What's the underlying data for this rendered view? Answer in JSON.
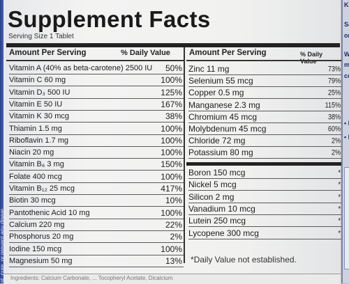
{
  "title": "Supplement Facts",
  "serving_size": "Serving Size 1 Tablet",
  "headers": {
    "left_amount": "Amount Per Serving",
    "left_dv": "% Daily Value",
    "right_amount": "Amount Per Serving",
    "right_dv": "% Daily Value"
  },
  "left_rows": [
    {
      "name": "Vitamin A (40% as beta-carotene) 2500 IU",
      "dv": "50%"
    },
    {
      "name": "Vitamin C 60 mg",
      "dv": "100%"
    },
    {
      "name": "Vitamin D₃ 500 IU",
      "dv": "125%"
    },
    {
      "name": "Vitamin E 50 IU",
      "dv": "167%"
    },
    {
      "name": "Vitamin K 30 mcg",
      "dv": "38%"
    },
    {
      "name": "Thiamin 1.5 mg",
      "dv": "100%"
    },
    {
      "name": "Riboflavin 1.7 mg",
      "dv": "100%"
    },
    {
      "name": "Niacin 20 mg",
      "dv": "100%"
    },
    {
      "name": "Vitamin B₆ 3 mg",
      "dv": "150%"
    },
    {
      "name": "Folate 400 mcg",
      "dv": "100%"
    },
    {
      "name": "Vitamin B₁₂ 25 mcg",
      "dv": "417%"
    },
    {
      "name": "Biotin 30 mcg",
      "dv": "10%"
    },
    {
      "name": "Pantothenic Acid 10 mg",
      "dv": "100%"
    },
    {
      "name": "Calcium 220 mg",
      "dv": "22%"
    },
    {
      "name": "Phosphorus 20 mg",
      "dv": "2%"
    },
    {
      "name": "Iodine 150 mcg",
      "dv": "100%"
    },
    {
      "name": "Magnesium 50 mg",
      "dv": "13%"
    }
  ],
  "right_rows": [
    {
      "name": "Zinc 11 mg",
      "dv": "73%"
    },
    {
      "name": "Selenium 55 mcg",
      "dv": "79%"
    },
    {
      "name": "Copper 0.5 mg",
      "dv": "25%"
    },
    {
      "name": "Manganese 2.3 mg",
      "dv": "115%"
    },
    {
      "name": "Chromium 45 mcg",
      "dv": "38%"
    },
    {
      "name": "Molybdenum 45 mcg",
      "dv": "60%"
    },
    {
      "name": "Chloride 72 mg",
      "dv": "2%"
    },
    {
      "name": "Potassium 80 mg",
      "dv": "2%"
    }
  ],
  "right_rows_2": [
    {
      "name": "Boron 150 mcg",
      "dv": "*"
    },
    {
      "name": "Nickel 5 mcg",
      "dv": "*"
    },
    {
      "name": "Silicon 2 mg",
      "dv": "*"
    },
    {
      "name": "Vanadium 10 mcg",
      "dv": "*"
    },
    {
      "name": "Lutein 250 mcg",
      "dv": "*"
    },
    {
      "name": "Lycopene 300 mcg",
      "dv": "*"
    }
  ],
  "footnote": "*Daily Value not established.",
  "side_text": "st, cure, or prevent any disease.",
  "bottom_text": "Ingredients: Calcium Carbonate, ... Tocopheryl Acetate, Dicalcium",
  "panel_right": {
    "lines": [
      "Keep",
      "Safe",
      "or m",
      "War",
      "may",
      "com",
      "• N",
      "• N"
    ]
  }
}
